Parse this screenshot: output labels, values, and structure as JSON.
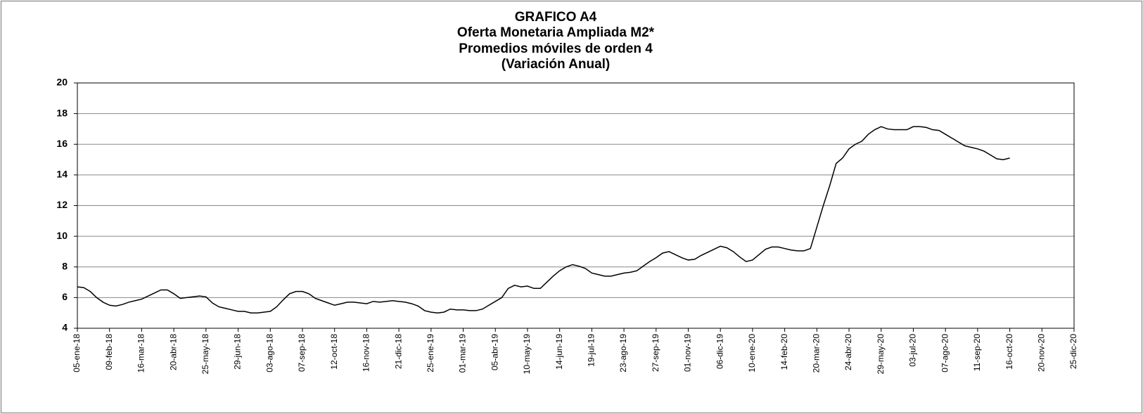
{
  "chart_data": {
    "type": "line",
    "title": [
      "GRAFICO A4",
      "Oferta Monetaria Ampliada M2*",
      "Promedios móviles de orden 4",
      "(Variación Anual)"
    ],
    "categories": [
      "05-ene-18",
      null,
      null,
      null,
      null,
      "09-feb-18",
      null,
      null,
      null,
      null,
      "16-mar-18",
      null,
      null,
      null,
      null,
      "20-abr-18",
      null,
      null,
      null,
      null,
      "25-may-18",
      null,
      null,
      null,
      null,
      "29-jun-18",
      null,
      null,
      null,
      null,
      "03-ago-18",
      null,
      null,
      null,
      null,
      "07-sep-18",
      null,
      null,
      null,
      null,
      "12-oct-18",
      null,
      null,
      null,
      null,
      "16-nov-18",
      null,
      null,
      null,
      null,
      "21-dic-18",
      null,
      null,
      null,
      null,
      "25-ene-19",
      null,
      null,
      null,
      null,
      "01-mar-19",
      null,
      null,
      null,
      null,
      "05-abr-19",
      null,
      null,
      null,
      null,
      "10-may-19",
      null,
      null,
      null,
      null,
      "14-jun-19",
      null,
      null,
      null,
      null,
      "19-jul-19",
      null,
      null,
      null,
      null,
      "23-ago-19",
      null,
      null,
      null,
      null,
      "27-sep-19",
      null,
      null,
      null,
      null,
      "01-nov-19",
      null,
      null,
      null,
      null,
      "06-dic-19",
      null,
      null,
      null,
      null,
      "10-ene-20",
      null,
      null,
      null,
      null,
      "14-feb-20",
      null,
      null,
      null,
      null,
      "20-mar-20",
      null,
      null,
      null,
      null,
      "24-abr-20",
      null,
      null,
      null,
      null,
      "29-may-20",
      null,
      null,
      null,
      null,
      "03-jul-20",
      null,
      null,
      null,
      null,
      "07-ago-20",
      null,
      null,
      null,
      null,
      "11-sep-20",
      null,
      null,
      null,
      null,
      "16-oct-20",
      null,
      null,
      null,
      null,
      "20-nov-20",
      null,
      null,
      null,
      null,
      "25-dic-20"
    ],
    "series": [
      {
        "color": "#000000",
        "values": [
          6.7,
          6.65,
          6.4,
          6.0,
          5.7,
          5.5,
          5.45,
          5.55,
          5.7,
          5.8,
          5.9,
          6.1,
          6.3,
          6.5,
          6.5,
          6.25,
          5.95,
          6.0,
          6.05,
          6.1,
          6.05,
          5.65,
          5.4,
          5.3,
          5.2,
          5.1,
          5.1,
          5.0,
          5.0,
          5.05,
          5.1,
          5.4,
          5.85,
          6.25,
          6.4,
          6.4,
          6.25,
          5.95,
          5.8,
          5.65,
          5.5,
          5.6,
          5.7,
          5.7,
          5.65,
          5.6,
          5.75,
          5.7,
          5.75,
          5.8,
          5.75,
          5.7,
          5.6,
          5.45,
          5.15,
          5.05,
          5.0,
          5.05,
          5.25,
          5.2,
          5.2,
          5.15,
          5.15,
          5.25,
          5.5,
          5.75,
          6.0,
          6.6,
          6.8,
          6.7,
          6.75,
          6.6,
          6.6,
          7.0,
          7.4,
          7.75,
          8.0,
          8.15,
          8.05,
          7.9,
          7.6,
          7.5,
          7.4,
          7.4,
          7.5,
          7.6,
          7.65,
          7.75,
          8.05,
          8.35,
          8.6,
          8.9,
          9.0,
          8.8,
          8.6,
          8.45,
          8.5,
          8.75,
          8.95,
          9.15,
          9.35,
          9.25,
          9.0,
          8.65,
          8.35,
          8.45,
          8.8,
          9.15,
          9.3,
          9.3,
          9.2,
          9.1,
          9.05,
          9.05,
          9.2,
          10.6,
          12.0,
          13.3,
          14.75,
          15.1,
          15.7,
          16.0,
          16.2,
          16.65,
          16.95,
          17.15,
          17.0,
          16.95,
          16.95,
          16.95,
          17.15,
          17.15,
          17.1,
          16.95,
          16.9,
          16.65,
          16.4,
          16.15,
          15.9,
          15.8,
          15.7,
          15.55,
          15.3,
          15.05,
          15.0,
          15.1,
          null,
          null,
          null,
          null,
          null,
          null,
          null,
          null,
          null,
          null
        ]
      }
    ],
    "ylim": [
      4,
      20
    ],
    "yticks": [
      4,
      6,
      8,
      10,
      12,
      14,
      16,
      18,
      20
    ],
    "grid": true
  }
}
